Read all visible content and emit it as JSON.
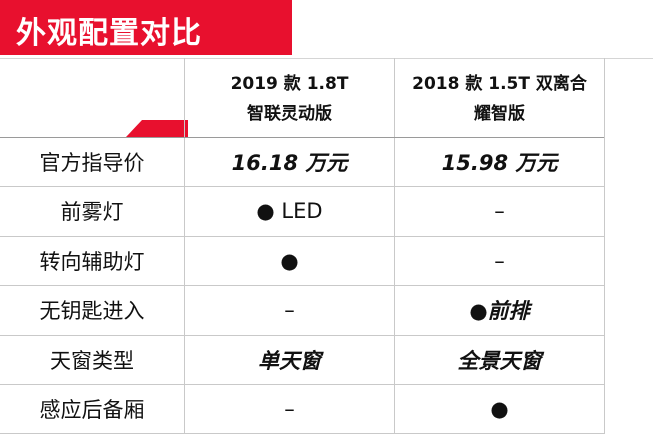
{
  "banner": {
    "title": "外观配置对比",
    "color": "#e8102e"
  },
  "columns": [
    {
      "line1": "2019 款 1.8T",
      "line2": "智联灵动版"
    },
    {
      "line1": "2018 款 1.5T 双离合",
      "line2": "耀智版"
    }
  ],
  "rows": [
    {
      "label": "官方指导价",
      "v1": "16.18 万元",
      "v2": "15.98 万元"
    },
    {
      "label": "前雾灯",
      "v1": "● LED",
      "v2": "–"
    },
    {
      "label": "转向辅助灯",
      "v1": "●",
      "v2": "–"
    },
    {
      "label": "无钥匙进入",
      "v1": "–",
      "v2": "●前排"
    },
    {
      "label": "天窗类型",
      "v1": "单天窗",
      "v2": "全景天窗"
    },
    {
      "label": "感应后备厢",
      "v1": "–",
      "v2": "●"
    }
  ]
}
